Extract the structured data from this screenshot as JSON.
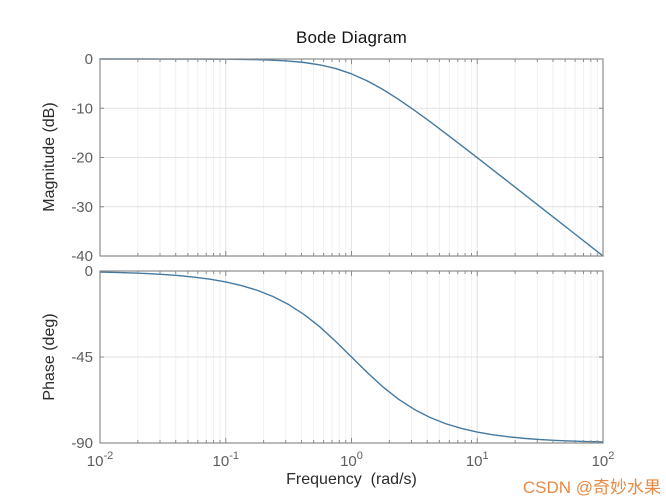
{
  "figure": {
    "watermark": "CSDN @奇妙水果",
    "colors": {
      "background": "#ffffff",
      "line": "#4579a0",
      "axis_box": "#8c8c8c",
      "tick": "#8c8c8c",
      "grid_major": "#e2e2e2",
      "grid_minor": "#f1f1f1",
      "tick_label": "#5d5d5d",
      "axis_label": "#2b2b2b",
      "title": "#141414",
      "watermark": "#e78a45"
    }
  },
  "chart_data": {
    "type": "line",
    "title": "Bode Diagram",
    "xlabel": "Frequency  (rad/s)",
    "x_scale": "log",
    "x_range_rad_s": [
      0.01,
      100
    ],
    "x_ticks_exponents": [
      -2,
      -1,
      0,
      1,
      2
    ],
    "x_tick_base": "10",
    "grid": "on",
    "legend": "none",
    "frequencies_rad_s": [
      0.01,
      0.01334,
      0.01778,
      0.02371,
      0.03162,
      0.04217,
      0.05623,
      0.07499,
      0.1,
      0.13335,
      0.17783,
      0.23714,
      0.31623,
      0.4217,
      0.56234,
      0.74989,
      1,
      1.3335,
      1.7783,
      2.3714,
      3.1623,
      4.217,
      5.6234,
      7.4989,
      10,
      13.335,
      17.783,
      23.714,
      31.623,
      42.17,
      56.234,
      74.989,
      100
    ],
    "subplots": [
      {
        "name": "magnitude",
        "ylabel": "Magnitude (dB)",
        "ylim": [
          -40,
          0
        ],
        "yticks": [
          0,
          -10,
          -20,
          -30,
          -40
        ],
        "ytick_labels": [
          "0",
          "-10",
          "-20",
          "-30",
          "-40"
        ],
        "values": [
          -0.0004,
          -0.0008,
          -0.0014,
          -0.0024,
          -0.0043,
          -0.0077,
          -0.0137,
          -0.0244,
          -0.0432,
          -0.0766,
          -0.1352,
          -0.2375,
          -0.4139,
          -0.7108,
          -1.1933,
          -1.9382,
          -3.0103,
          -4.4379,
          -6.1934,
          -8.2103,
          -10.4139,
          -12.7376,
          -15.1356,
          -17.5766,
          -20.0432,
          -22.5244,
          -25.0133,
          -27.5077,
          -30.0043,
          -32.5025,
          -35.0012,
          -37.5005,
          -40.0004
        ]
      },
      {
        "name": "phase",
        "ylabel": "Phase (deg)",
        "ylim": [
          -90,
          0
        ],
        "yticks": [
          0,
          -45,
          -90
        ],
        "ytick_labels": [
          "0",
          "-45",
          "-90"
        ],
        "values": [
          -0.57,
          -0.76,
          -1.02,
          -1.36,
          -1.81,
          -2.41,
          -3.22,
          -4.29,
          -5.71,
          -7.6,
          -10.08,
          -13.34,
          -17.55,
          -22.87,
          -29.34,
          -36.87,
          -45,
          -53.13,
          -60.65,
          -67.13,
          -72.45,
          -76.66,
          -79.92,
          -82.4,
          -84.29,
          -85.71,
          -86.78,
          -87.58,
          -88.19,
          -88.64,
          -88.98,
          -89.24,
          -89.43
        ]
      }
    ]
  }
}
